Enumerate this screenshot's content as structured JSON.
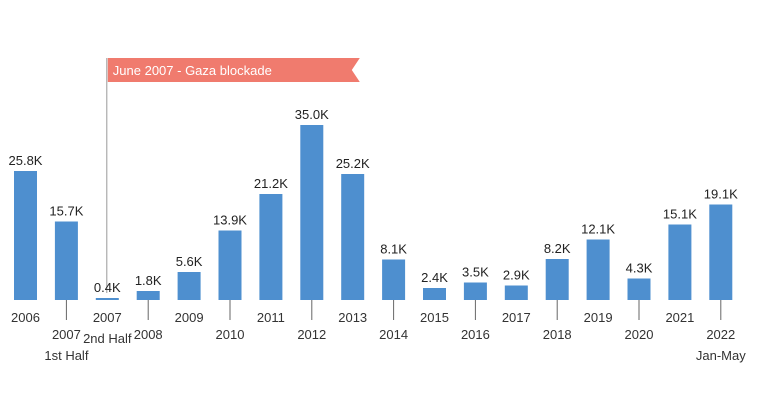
{
  "chart_data": {
    "type": "bar",
    "title": "",
    "xlabel": "",
    "ylabel": "",
    "ylim": [
      0,
      35000
    ],
    "grid": false,
    "legend": "none",
    "bar_color": "#4e8fcf",
    "categories": [
      [
        "2006"
      ],
      [
        "2007",
        "1st Half"
      ],
      [
        "2007",
        "2nd Half"
      ],
      [
        "2008"
      ],
      [
        "2009"
      ],
      [
        "2010"
      ],
      [
        "2011"
      ],
      [
        "2012"
      ],
      [
        "2013"
      ],
      [
        "2014"
      ],
      [
        "2015"
      ],
      [
        "2016"
      ],
      [
        "2017"
      ],
      [
        "2018"
      ],
      [
        "2019"
      ],
      [
        "2020"
      ],
      [
        "2021"
      ],
      [
        "2022",
        "Jan-May"
      ]
    ],
    "values": [
      25800,
      15700,
      400,
      1800,
      5600,
      13900,
      21200,
      35000,
      25200,
      8100,
      2400,
      3500,
      2900,
      8200,
      12100,
      4300,
      15100,
      19100
    ],
    "value_labels": [
      "25.8K",
      "15.7K",
      "0.4K",
      "1.8K",
      "5.6K",
      "13.9K",
      "21.2K",
      "35.0K",
      "25.2K",
      "8.1K",
      "2.4K",
      "3.5K",
      "2.9K",
      "8.2K",
      "12.1K",
      "4.3K",
      "15.1K",
      "19.1K"
    ],
    "annotation": {
      "text": "June 2007 - Gaza blockade",
      "at_category": 2,
      "color": "#f07b6e"
    }
  }
}
